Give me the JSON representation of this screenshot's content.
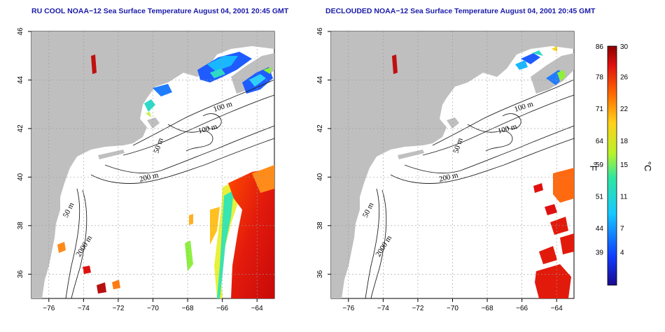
{
  "panels": [
    {
      "id": "left",
      "title": "RU COOL NOAA−12 Sea Surface Temperature August 04, 2001 20:45 GMT",
      "cloud_masked": false
    },
    {
      "id": "right",
      "title": "DECLOUDED NOAA−12 Sea Surface Temperature August 04, 2001 20:45 GMT",
      "cloud_masked": true
    }
  ],
  "axes": {
    "lon_ticks": [
      "−76",
      "−74",
      "−72",
      "−70",
      "−68",
      "−66",
      "−64"
    ],
    "lon_values": [
      -76,
      -74,
      -72,
      -70,
      -68,
      -66,
      -64
    ],
    "lat_ticks": [
      "36",
      "38",
      "40",
      "42",
      "44",
      "46"
    ],
    "lat_values": [
      36,
      38,
      40,
      42,
      44,
      46
    ],
    "lon_range": [
      -77,
      -63
    ],
    "lat_range": [
      35,
      46
    ]
  },
  "contour_labels": [
    "100 m",
    "100 m",
    "50 m",
    "200 m",
    "50 m",
    "2000 m"
  ],
  "colorbar": {
    "fahrenheit_labels": [
      "86",
      "78",
      "71",
      "64",
      "59",
      "51",
      "44",
      "39"
    ],
    "celsius_labels": [
      "30",
      "26",
      "22",
      "18",
      "15",
      "11",
      "7",
      "4"
    ],
    "fahrenheit_unit": "°F",
    "celsius_unit": "°C",
    "range_c": [
      0,
      30
    ]
  },
  "colors": {
    "land": "#bfbfbf",
    "ocean": "#ffffff",
    "title": "#1a1aa8",
    "grid": "#9a9a9a"
  }
}
